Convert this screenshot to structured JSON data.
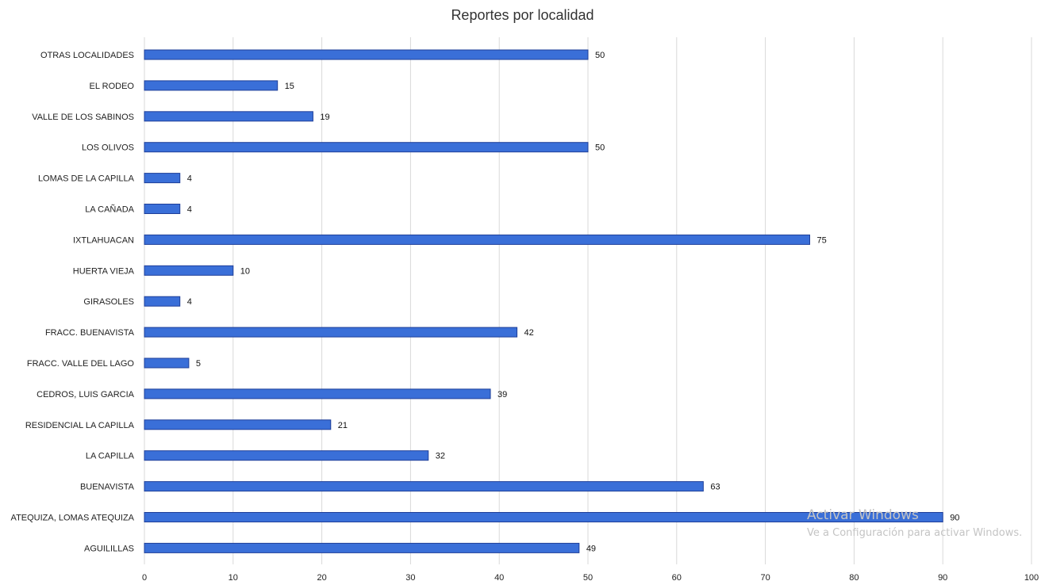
{
  "chart_data": {
    "type": "bar",
    "orientation": "horizontal",
    "title": "Reportes por localidad",
    "xlabel": "",
    "ylabel": "",
    "xlim": [
      0,
      100
    ],
    "ticks": [
      "0",
      "10",
      "20",
      "30",
      "40",
      "50",
      "60",
      "70",
      "80",
      "90",
      "100"
    ],
    "grid": true,
    "legend": "none",
    "bar_color": "#3a6fd8",
    "categories": [
      "OTRAS LOCALIDADES",
      "EL RODEO",
      "VALLE DE LOS SABINOS",
      "LOS OLIVOS",
      "LOMAS DE LA CAPILLA",
      "LA CAÑADA",
      "IXTLAHUACAN",
      "HUERTA VIEJA",
      "GIRASOLES",
      "FRACC. BUENAVISTA",
      "FRACC. VALLE DEL LAGO",
      "CEDROS, LUIS GARCIA",
      "RESIDENCIAL LA CAPILLA",
      "LA CAPILLA",
      "BUENAVISTA",
      "ATEQUIZA, LOMAS ATEQUIZA",
      "AGUILILLAS"
    ],
    "values": [
      50,
      15,
      19,
      50,
      4,
      4,
      75,
      10,
      4,
      42,
      5,
      39,
      21,
      32,
      63,
      90,
      49
    ]
  },
  "watermark": {
    "title": "Activar Windows",
    "subtitle": "Ve a Configuración para activar Windows."
  }
}
